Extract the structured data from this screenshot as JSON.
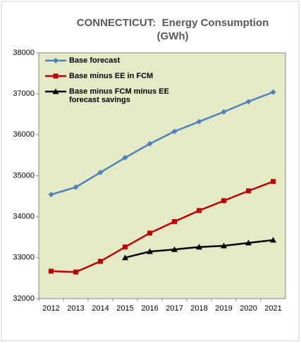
{
  "chart_data": {
    "type": "line",
    "title": "CONNECTICUT:  Energy Consumption (GWh)",
    "categories": [
      "2012",
      "2013",
      "2014",
      "2015",
      "2016",
      "2017",
      "2018",
      "2019",
      "2020",
      "2021"
    ],
    "series": [
      {
        "name": "Base forecast",
        "color": "#4f81bd",
        "marker": "diamond",
        "values": [
          34540,
          34720,
          35080,
          35440,
          35780,
          36080,
          36320,
          36560,
          36810,
          37040
        ]
      },
      {
        "name": "Base minus EE in FCM",
        "color": "#c00000",
        "marker": "square",
        "values": [
          32670,
          32650,
          32910,
          33260,
          33600,
          33880,
          34150,
          34390,
          34630,
          34860
        ]
      },
      {
        "name": "Base minus FCM minus EE forecast savings",
        "color": "#000000",
        "marker": "triangle",
        "values": [
          null,
          null,
          null,
          33000,
          33150,
          33200,
          33260,
          33290,
          33360,
          33430
        ]
      }
    ],
    "ylim": [
      32000,
      38000
    ],
    "yticks": [
      32000,
      33000,
      34000,
      35000,
      36000,
      37000,
      38000
    ],
    "plot_background": "#e4e9c6"
  }
}
